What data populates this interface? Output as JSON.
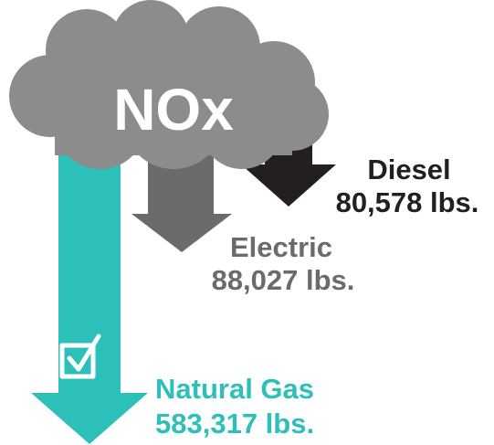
{
  "title": "NOx",
  "items": [
    {
      "name": "Diesel",
      "amount": "80,578 lbs."
    },
    {
      "name": "Electric",
      "amount": "88,027 lbs."
    },
    {
      "name": "Natural Gas",
      "amount": "583,317 lbs."
    }
  ]
}
